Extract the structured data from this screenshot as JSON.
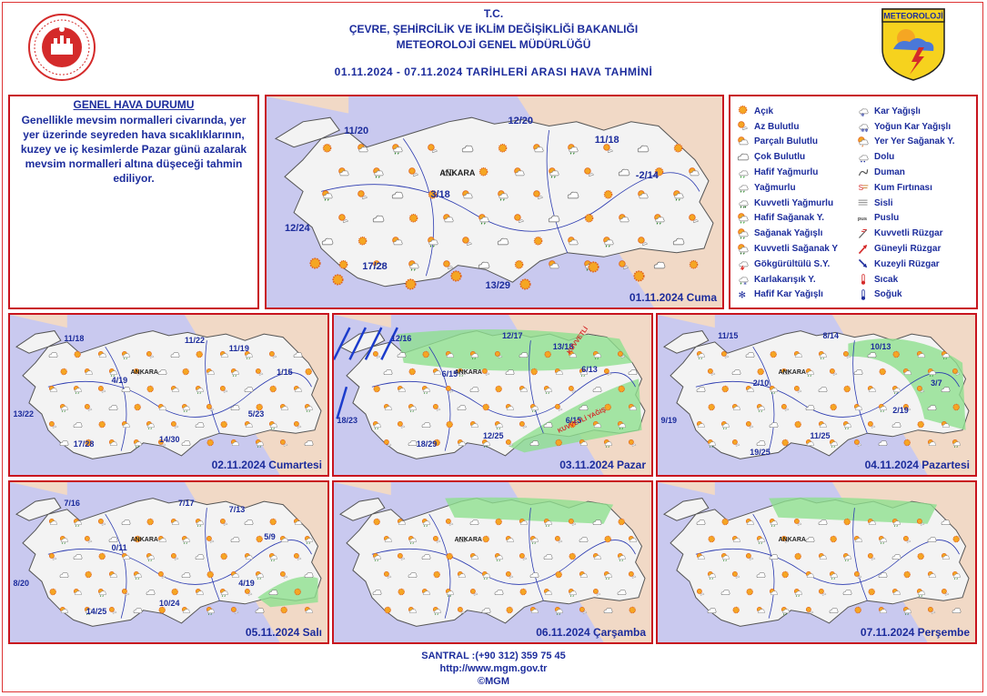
{
  "header": {
    "line1": "T.C.",
    "line2": "ÇEVRE, ŞEHİRCİLİK VE İKLİM DEĞİŞİKLİĞİ BAKANLIĞI",
    "line3": "METEOROLOJİ GENEL MÜDÜRLÜĞÜ",
    "line4": "01.11.2024 - 07.11.2024 TARİHLERİ ARASI HAVA TAHMİNİ",
    "logo_text": "METEOROLOJİ"
  },
  "genel": {
    "title": "GENEL HAVA DURUMU",
    "body": "Genellikle mevsim normalleri civarında, yer yer üzerinde seyreden hava sıcaklıklarının, kuzey ve iç kesimlerde Pazar günü azalarak mevsim normalleri altına düşeceği tahmin ediliyor."
  },
  "legend": {
    "left": [
      {
        "label": "Açık",
        "icon": "sun"
      },
      {
        "label": "Az Bulutlu",
        "icon": "sun-small-cloud"
      },
      {
        "label": "Parçalı Bulutlu",
        "icon": "sun-cloud"
      },
      {
        "label": "Çok Bulutlu",
        "icon": "cloud"
      },
      {
        "label": "Hafif Yağmurlu",
        "icon": "light-rain"
      },
      {
        "label": "Yağmurlu",
        "icon": "rain"
      },
      {
        "label": "Kuvvetli Yağmurlu",
        "icon": "heavy-rain"
      },
      {
        "label": "Hafif Sağanak Y.",
        "icon": "light-shower"
      },
      {
        "label": "Sağanak Yağışlı",
        "icon": "shower"
      },
      {
        "label": "Kuvvetli Sağanak Y",
        "icon": "heavy-shower"
      },
      {
        "label": "Gökgürültülü S.Y.",
        "icon": "thunder"
      },
      {
        "label": "Karlakarışık Y.",
        "icon": "sleet"
      },
      {
        "label": "Hafif Kar Yağışlı",
        "icon": "light-snow"
      }
    ],
    "right": [
      {
        "label": "Kar Yağışlı",
        "icon": "snow"
      },
      {
        "label": "Yoğun Kar Yağışlı",
        "icon": "heavy-snow"
      },
      {
        "label": "Yer Yer Sağanak Y.",
        "icon": "local-shower"
      },
      {
        "label": "Dolu",
        "icon": "hail"
      },
      {
        "label": "Duman",
        "icon": "smoke"
      },
      {
        "label": "Kum Fırtınası",
        "icon": "sandstorm"
      },
      {
        "label": "Sisli",
        "icon": "fog"
      },
      {
        "label": "Puslu",
        "icon": "haze"
      },
      {
        "label": "Kuvvetli Rüzgar",
        "icon": "strong-wind"
      },
      {
        "label": "Güneyli Rüzgar",
        "icon": "south-wind"
      },
      {
        "label": "Kuzeyli Rüzgar",
        "icon": "north-wind"
      },
      {
        "label": "Sıcak",
        "icon": "hot"
      },
      {
        "label": "Soğuk",
        "icon": "cold"
      }
    ]
  },
  "colors": {
    "text": "#1c2c9c",
    "border": "#c8141e",
    "sea": "#c9c9ef",
    "land": "#f3f3f3",
    "neighbor": "#f1d9c6",
    "rain": "#8ee08e"
  },
  "maps": [
    {
      "date": "01.11.2024 Cuma",
      "center": "ANKARA",
      "temps": [
        "11/20",
        "12/20",
        "11/18",
        "-2/14",
        "3/18",
        "12/24",
        "17/28",
        "13/29"
      ]
    },
    {
      "date": "02.11.2024 Cumartesi",
      "center": "ANKARA",
      "temps": [
        "11/18",
        "11/22",
        "11/19",
        "4/19",
        "1/15",
        "13/22",
        "5/23",
        "17/28",
        "14/30"
      ]
    },
    {
      "date": "03.11.2024 Pazar",
      "center": "ANKARA",
      "temps": [
        "12/16",
        "12/17",
        "13/18",
        "6/15",
        "6/13",
        "6/15",
        "12/25",
        "18/29",
        "18/23"
      ],
      "warning1": "KUVVETLİ",
      "warning2": "KUVVETLİ YAĞIŞ"
    },
    {
      "date": "04.11.2024 Pazartesi",
      "center": "ANKARA",
      "temps": [
        "11/15",
        "8/14",
        "10/13",
        "2/10",
        "3/7",
        "2/19",
        "9/19",
        "11/25",
        "19/25"
      ]
    },
    {
      "date": "05.11.2024 Salı",
      "center": "ANKARA",
      "temps": [
        "7/16",
        "7/17",
        "7/13",
        "0/11",
        "5/9",
        "8/20",
        "4/19",
        "14/25",
        "10/24"
      ]
    },
    {
      "date": "06.11.2024 Çarşamba",
      "center": "ANKARA",
      "temps": []
    },
    {
      "date": "07.11.2024 Perşembe",
      "center": "ANKARA",
      "temps": []
    }
  ],
  "footer": {
    "line1": "SANTRAL :(+90 312) 359 75 45",
    "line2": "http://www.mgm.gov.tr",
    "line3": "©MGM"
  }
}
